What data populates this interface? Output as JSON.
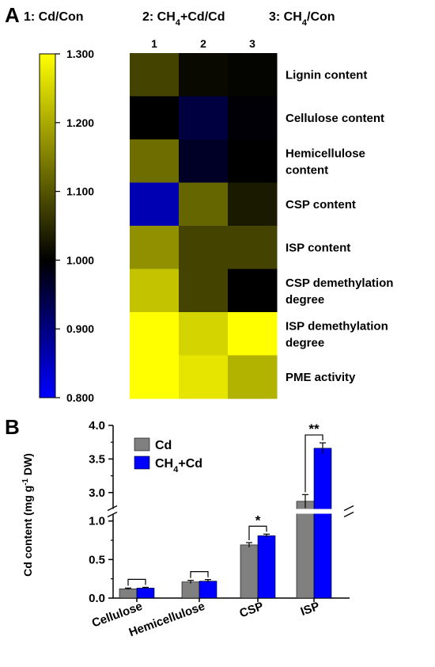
{
  "panel_a": {
    "label": "A",
    "header": [
      {
        "prefix": "1: ",
        "text": "Cd/Con"
      },
      {
        "prefix": "2: ",
        "text": "CH",
        "sub": "4",
        "rest": "+Cd/Cd"
      },
      {
        "prefix": "3: ",
        "text": "CH",
        "sub": "4",
        "rest": "/Con"
      }
    ],
    "header_text": [
      "1: Cd/Con",
      "2: CH4+Cd/Cd",
      "3: CH4/Con"
    ]
  },
  "panel_b": {
    "label": "B"
  },
  "colors": {
    "yellow": "#ffff00",
    "black": "#000000",
    "blue": "#0000ff",
    "bar_cd": "#808080",
    "bar_ch4cd": "#0000ff"
  },
  "chart_data": [
    {
      "type": "heatmap",
      "columns": [
        "1",
        "2",
        "3"
      ],
      "rows": [
        [
          "Lignin content"
        ],
        [
          "Cellulose content"
        ],
        [
          "Hemicellulose",
          "content"
        ],
        [
          "CSP content"
        ],
        [
          "ISP content"
        ],
        [
          "CSP demethylation",
          "degree"
        ],
        [
          "ISP demethylation",
          "degree"
        ],
        [
          "PME activity"
        ]
      ],
      "values": [
        [
          1.08,
          1.01,
          1.005
        ],
        [
          1.0,
          0.95,
          0.995
        ],
        [
          1.13,
          0.97,
          1.0
        ],
        [
          0.86,
          1.12,
          1.03
        ],
        [
          1.17,
          1.08,
          1.08
        ],
        [
          1.23,
          1.08,
          1.0
        ],
        [
          1.3,
          1.25,
          1.3
        ],
        [
          1.3,
          1.27,
          1.21
        ]
      ],
      "colorbar": {
        "min": 0.8,
        "max": 1.3,
        "ticks": [
          "1.300",
          "1.200",
          "1.100",
          "1.000",
          "0.900",
          "0.800"
        ],
        "tick_values": [
          1.3,
          1.2,
          1.1,
          1.0,
          0.9,
          0.8
        ],
        "colors": [
          "#0000ff",
          "#000000",
          "#ffff00"
        ]
      }
    },
    {
      "type": "bar",
      "categories": [
        "Cellulose",
        "Hemicellulose",
        "CSP",
        "ISP"
      ],
      "series": [
        {
          "name": "Cd",
          "values": [
            0.12,
            0.21,
            0.69,
            2.87
          ],
          "errors": [
            0.01,
            0.02,
            0.03,
            0.1
          ]
        },
        {
          "name": "CH4+Cd",
          "values": [
            0.13,
            0.22,
            0.81,
            3.66
          ],
          "errors": [
            0.01,
            0.02,
            0.02,
            0.08
          ]
        }
      ],
      "legend": [
        {
          "text": "Cd"
        },
        {
          "text": "CH",
          "sub": "4",
          "rest": "+Cd"
        }
      ],
      "significance": [
        "",
        "",
        "*",
        "**"
      ],
      "ylabel_parts": {
        "pre": "Cd content (mg g",
        "sup": "-1",
        "post": " DW)"
      },
      "ylabel": "Cd content (mg g-1 DW)",
      "y_lower": {
        "range": [
          0,
          1.1
        ],
        "ticks": [
          "0.0",
          "0.5",
          "1.0"
        ],
        "tick_values": [
          0.0,
          0.5,
          1.0
        ]
      },
      "y_upper": {
        "range": [
          2.75,
          4.0
        ],
        "ticks": [
          "3.0",
          "3.5",
          "4.0"
        ],
        "tick_values": [
          3.0,
          3.5,
          4.0
        ]
      },
      "axis_break": true,
      "grid": false,
      "legend_position": "top-left"
    }
  ]
}
